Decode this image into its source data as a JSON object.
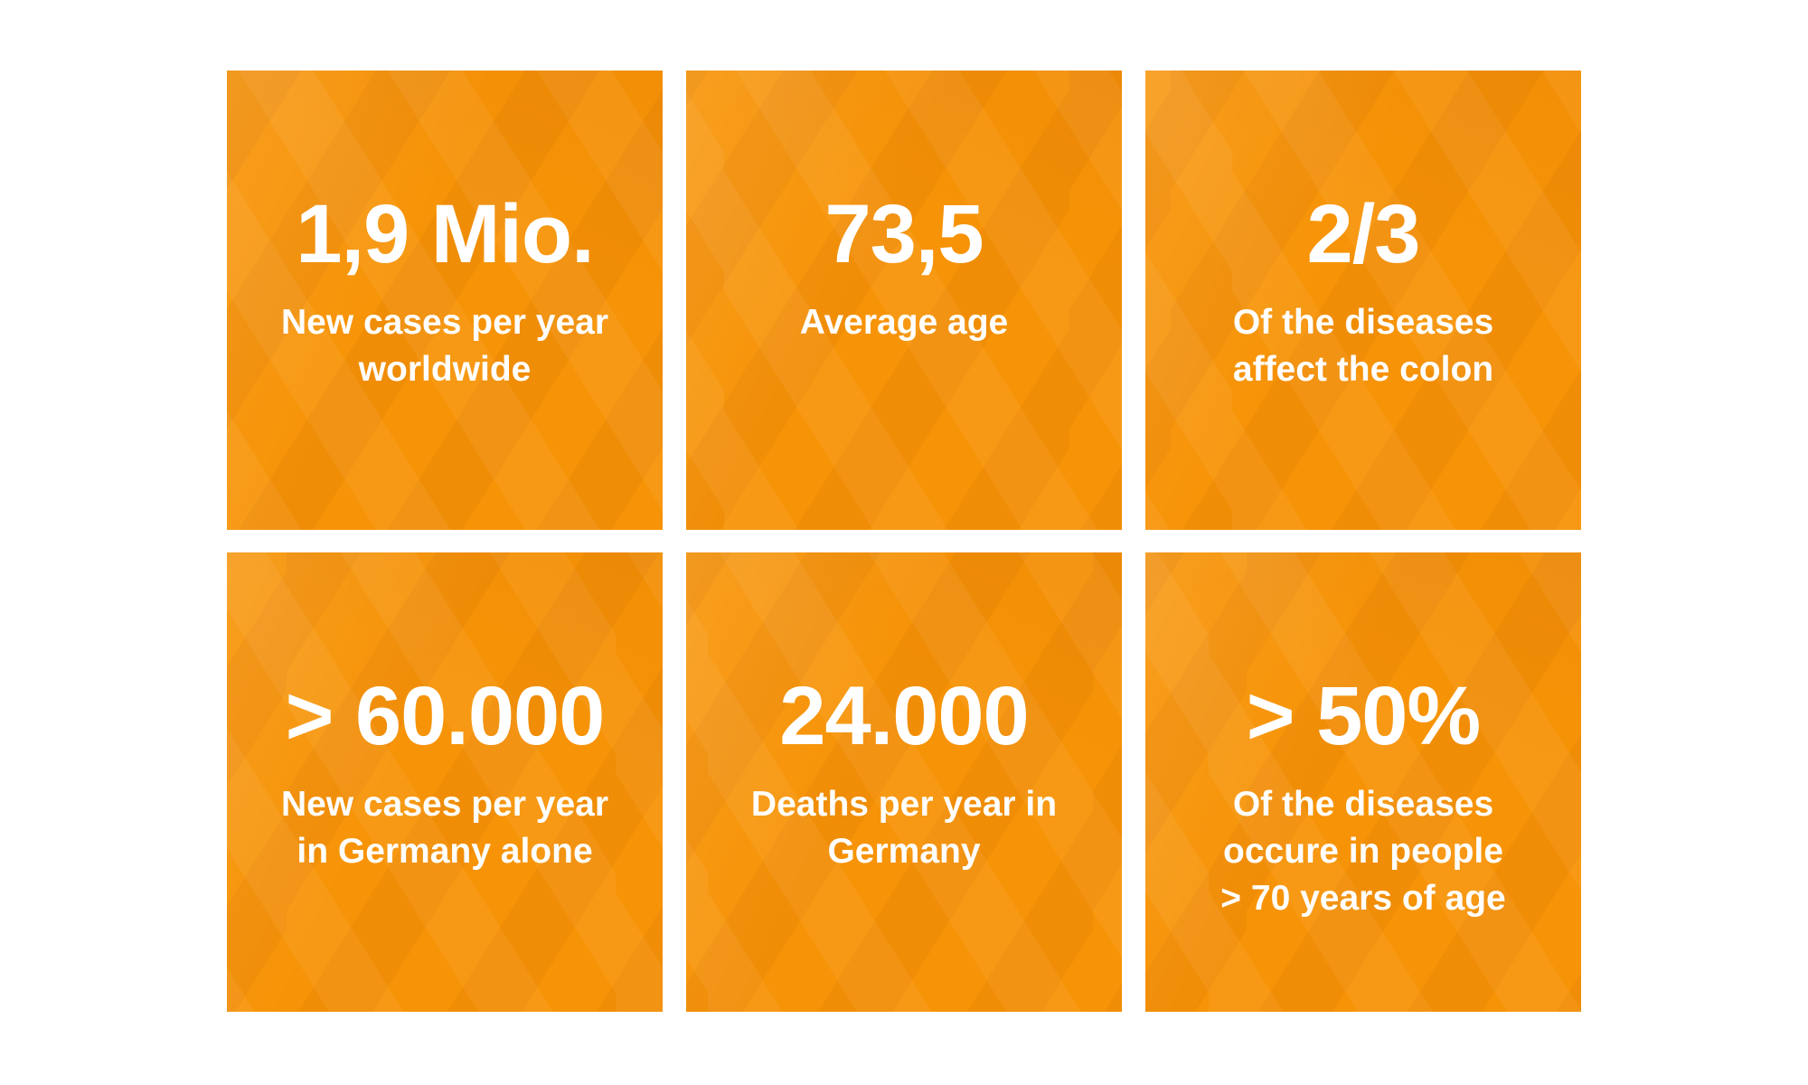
{
  "theme": {
    "tile_base_color": "#f79306",
    "tile_light_facet_color": "#f9a01a",
    "tile_dark_facet_color": "#ef8c00",
    "text_color": "#ffffff",
    "page_background": "#ffffff"
  },
  "tiles": [
    {
      "value": "1,9 Mio.",
      "label_lines": [
        "New cases per year",
        "worldwide"
      ]
    },
    {
      "value": "73,5",
      "label_lines": [
        "Average age"
      ]
    },
    {
      "value": "2/3",
      "label_lines": [
        "Of the diseases",
        "affect the colon"
      ]
    },
    {
      "value": "> 60.000",
      "label_lines": [
        "New cases per year",
        "in Germany alone"
      ]
    },
    {
      "value": "24.000",
      "label_lines": [
        "Deaths per year in",
        "Germany"
      ]
    },
    {
      "value": "> 50%",
      "label_lines": [
        "Of the diseases",
        "occure in people",
        "> 70 years of age"
      ]
    }
  ],
  "chart_data": {
    "type": "table",
    "title": "",
    "items": [
      {
        "value_display": "1,9 Mio.",
        "value_numeric": 1900000,
        "label": "New cases per year worldwide"
      },
      {
        "value_display": "73,5",
        "value_numeric": 73.5,
        "label": "Average age"
      },
      {
        "value_display": "2/3",
        "value_numeric": 0.667,
        "label": "Of the diseases affect the colon"
      },
      {
        "value_display": "> 60.000",
        "value_numeric": 60000,
        "label": "New cases per year in Germany alone",
        "qualifier": "greater than"
      },
      {
        "value_display": "24.000",
        "value_numeric": 24000,
        "label": "Deaths per year in Germany"
      },
      {
        "value_display": "> 50%",
        "value_numeric": 0.5,
        "label": "Of the diseases occure in people > 70 years of age",
        "qualifier": "greater than"
      }
    ],
    "layout": "3 columns x 2 rows of stat tiles"
  }
}
